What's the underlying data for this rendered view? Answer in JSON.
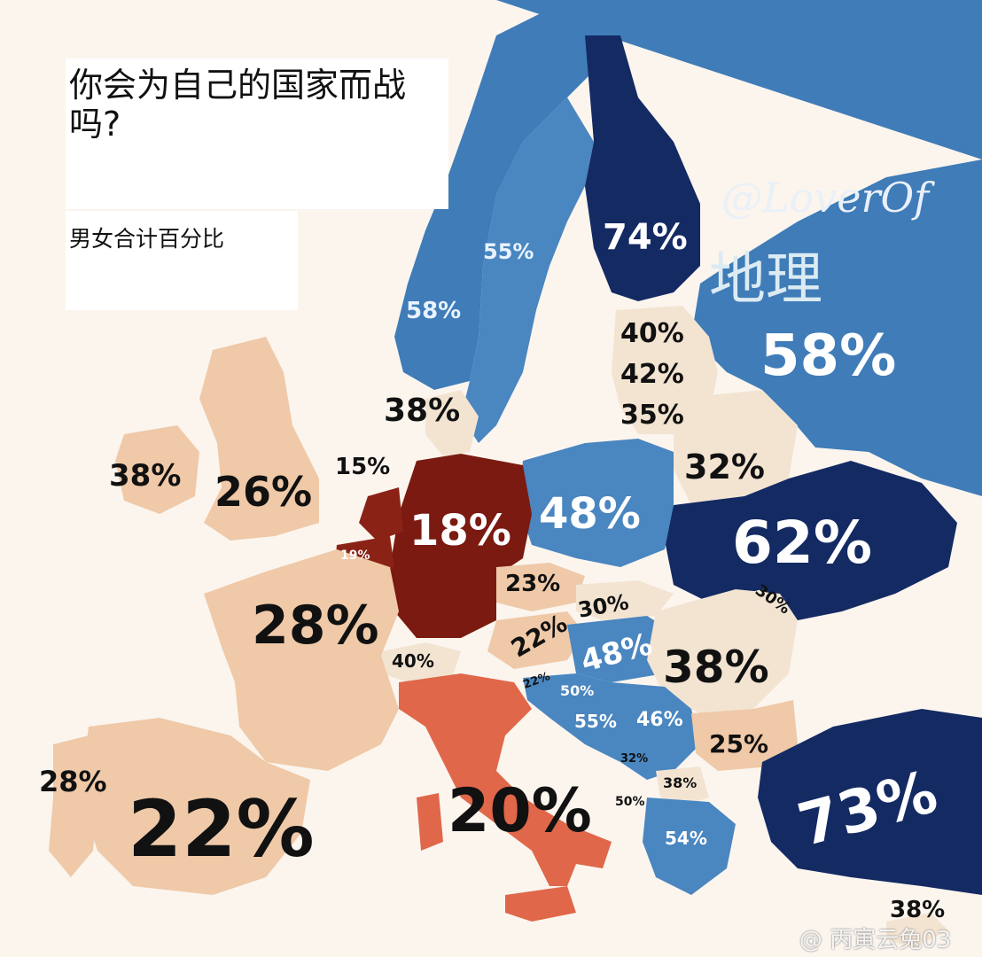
{
  "title": "你会为自己的国家而战吗?",
  "subtitle": "男女合计百分比",
  "credit": {
    "handle": "@LoverOf",
    "name": "地理"
  },
  "regions": {
    "finland": "74%",
    "sweden": "55%",
    "norway": "58%",
    "russia": "58%",
    "estonia": "40%",
    "latvia": "42%",
    "lithuania": "35%",
    "denmark": "38%",
    "belarus": "32%",
    "ireland": "38%",
    "uk": "26%",
    "netherlands": "15%",
    "germany": "18%",
    "poland": "48%",
    "ukraine": "62%",
    "belgium": "19%",
    "czechia": "23%",
    "slovakia": "30%",
    "moldova": "30%",
    "france": "28%",
    "austria": "22%",
    "hungary": "48%",
    "romania": "38%",
    "switzerland": "40%",
    "slovenia": "22%",
    "croatia": "50%",
    "bosnia": "55%",
    "serbia": "46%",
    "bulgaria": "25%",
    "montenegro": "32%",
    "macedonia": "38%",
    "portugal": "28%",
    "albania": "50%",
    "italy": "20%",
    "spain": "22%",
    "turkey": "73%",
    "greece": "54%",
    "cyprus": "38%"
  },
  "watermark": "@ 丙寅云兔03",
  "colors": {
    "very_high": "#142a63",
    "high": "#4a86c0",
    "medium": "#f3e4d2",
    "low": "#efc9a8",
    "very_low": "#7a1a10",
    "italy": "#e0674a",
    "sea": "#fbf5ee"
  }
}
